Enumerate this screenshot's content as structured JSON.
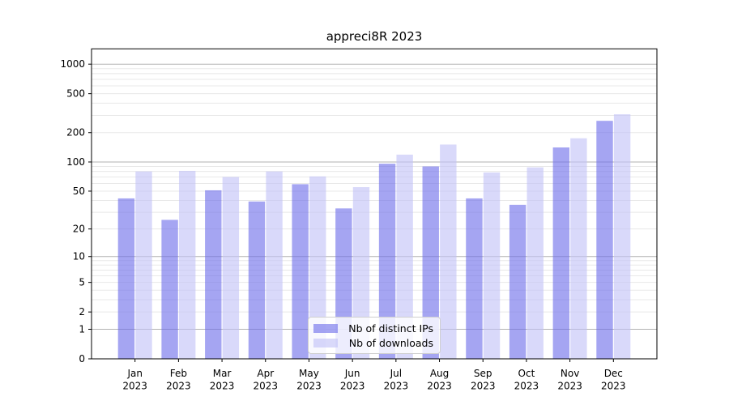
{
  "chart_data": {
    "type": "bar",
    "title": "appreci8R 2023",
    "categories": [
      "Jan 2023",
      "Feb 2023",
      "Mar 2023",
      "Apr 2023",
      "May 2023",
      "Jun 2023",
      "Jul 2023",
      "Aug 2023",
      "Sep 2023",
      "Oct 2023",
      "Nov 2023",
      "Dec 2023"
    ],
    "series": [
      {
        "name": "Nb of distinct IPs",
        "color": "#6e6eea",
        "opacity": 0.62,
        "values": [
          42,
          25,
          51,
          39,
          59,
          33,
          96,
          90,
          42,
          36,
          141,
          264
        ]
      },
      {
        "name": "Nb of downloads",
        "color": "#c2c2f7",
        "opacity": 0.62,
        "values": [
          80,
          81,
          70,
          80,
          71,
          55,
          119,
          151,
          78,
          88,
          175,
          308
        ]
      }
    ],
    "xlabel": "",
    "ylabel": "",
    "yscale": "log10(value+1)",
    "ylim": [
      0,
      1400
    ],
    "yticks": [
      0,
      1,
      2,
      5,
      10,
      20,
      50,
      100,
      200,
      500,
      1000
    ],
    "grid": {
      "on": true,
      "major_values": [
        1,
        10,
        100,
        1000
      ],
      "minor_mantissas": [
        2,
        3,
        4,
        5,
        6,
        7,
        8,
        9
      ],
      "minor_decades": [
        1,
        10,
        100
      ],
      "major_color": "#b3b3b3",
      "minor_color": "#e8e8e8"
    },
    "legend": {
      "position": "inside-bottom-center",
      "entries": [
        "Nb of distinct IPs",
        "Nb of downloads"
      ]
    },
    "axis_color": "#000000"
  }
}
